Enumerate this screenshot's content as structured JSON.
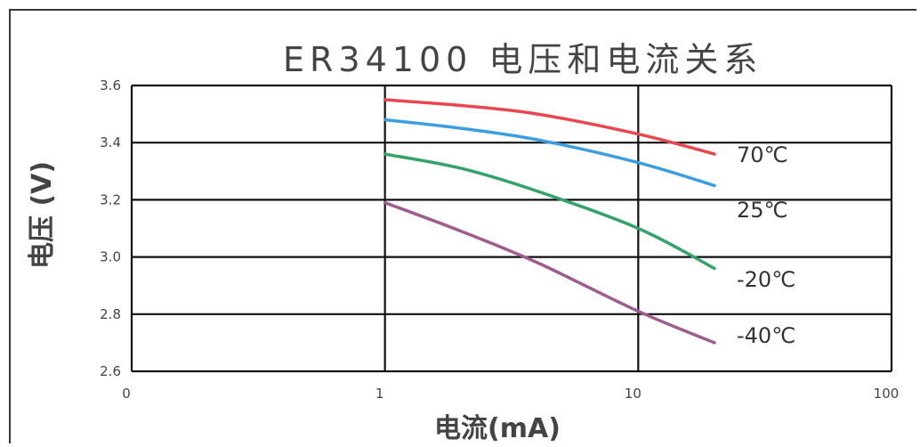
{
  "chart_data": {
    "type": "line",
    "title": "ER34100 电压和电流关系",
    "xlabel": "电流(mA)",
    "ylabel": "电压 (V)",
    "x_ticks": [
      "0",
      "1",
      "10",
      "100"
    ],
    "y_ticks": [
      "3.6",
      "3.4",
      "3.2",
      "3.0",
      "2.8",
      "2.6"
    ],
    "xlim": [
      0.1,
      100
    ],
    "ylim": [
      2.6,
      3.6
    ],
    "x_scale": "log",
    "grid": true,
    "series": [
      {
        "name": "70℃",
        "color": "#e8474f",
        "x": [
          1,
          2,
          4,
          10,
          20
        ],
        "y": [
          3.55,
          3.53,
          3.5,
          3.43,
          3.36
        ]
      },
      {
        "name": "25℃",
        "color": "#3c9de0",
        "x": [
          1,
          2,
          4,
          10,
          20
        ],
        "y": [
          3.48,
          3.45,
          3.41,
          3.33,
          3.25
        ]
      },
      {
        "name": "-20℃",
        "color": "#33a36a",
        "x": [
          1,
          2,
          4,
          10,
          20
        ],
        "y": [
          3.36,
          3.31,
          3.23,
          3.1,
          2.96
        ]
      },
      {
        "name": "-40℃",
        "color": "#9e5c8f",
        "x": [
          1,
          2,
          4,
          10,
          20
        ],
        "y": [
          3.19,
          3.09,
          2.98,
          2.81,
          2.7
        ]
      }
    ]
  }
}
